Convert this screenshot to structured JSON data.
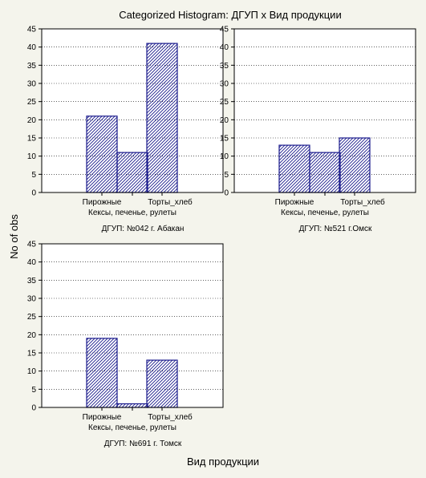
{
  "chart_data": {
    "type": "bar",
    "title": "Categorized Histogram: ДГУП x Вид продукции",
    "xlabel": "Вид продукции",
    "ylabel": "No of obs",
    "ylim": [
      0,
      45
    ],
    "yticks": [
      0,
      5,
      10,
      15,
      20,
      25,
      30,
      35,
      40,
      45
    ],
    "categories": [
      "Пирожные",
      "Кексы, печенье, рулеты",
      "Торты_хлеб"
    ],
    "panels": [
      {
        "label": "ДГУП: №042 г. Абакан",
        "values": [
          21,
          11,
          41
        ]
      },
      {
        "label": "ДГУП: №521 г.Омск",
        "values": [
          13,
          11,
          15
        ]
      },
      {
        "label": "ДГУП: №691 г. Томск",
        "values": [
          19,
          1,
          13
        ]
      }
    ],
    "grid": true,
    "bar_color": "#1a1a8c"
  }
}
